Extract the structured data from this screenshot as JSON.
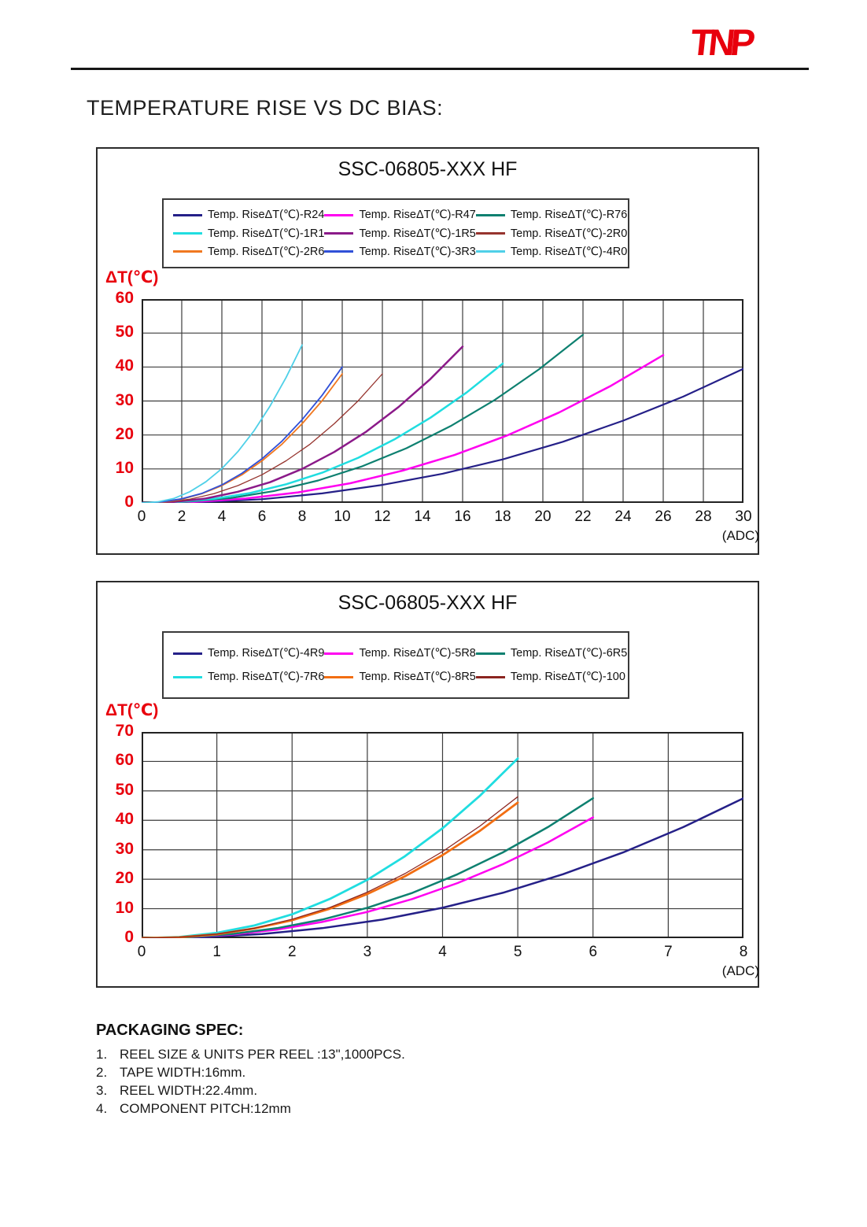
{
  "logo": {
    "text": "TNP",
    "color": "#e8000d"
  },
  "page_title": "TEMPERATURE RISE VS DC BIAS:",
  "colors": {
    "axis_label_red": "#e8000d",
    "grid": "#3c3c3c",
    "plot_border": "#222222"
  },
  "chart_data": [
    {
      "type": "line",
      "title": "SSC-06805-XXX HF",
      "ylabel": "ΔT(℃)",
      "xlabel": "(ADC)",
      "xlim": [
        0,
        30
      ],
      "ylim": [
        0,
        60
      ],
      "xticks": [
        0,
        2,
        4,
        6,
        8,
        10,
        12,
        14,
        16,
        18,
        20,
        22,
        24,
        26,
        28,
        30
      ],
      "yticks": [
        0,
        10,
        20,
        30,
        40,
        50,
        60
      ],
      "grid": true,
      "legend_position": "top",
      "series": [
        {
          "name": "Temp. RiseΔT(℃)-R24",
          "color": "#252088",
          "line_width": 2.2,
          "x": [
            0,
            3,
            6,
            9,
            12,
            15,
            18,
            21,
            24,
            27,
            30
          ],
          "y": [
            0,
            0.2,
            1.1,
            2.8,
            5.3,
            8.6,
            12.8,
            18.0,
            24.2,
            31.3,
            39.5
          ]
        },
        {
          "name": "Temp. RiseΔT(℃)-R47",
          "color": "#ff00f0",
          "line_width": 2.5,
          "x": [
            0,
            2.6,
            5.2,
            7.8,
            10.4,
            13,
            15.6,
            18.2,
            20.8,
            23.4,
            26
          ],
          "y": [
            0,
            0.3,
            1.3,
            3.1,
            5.8,
            9.5,
            14.1,
            19.8,
            26.6,
            34.5,
            43.5
          ]
        },
        {
          "name": "Temp. RiseΔT(℃)-R76",
          "color": "#0e8070",
          "line_width": 2.2,
          "x": [
            0,
            2.2,
            4.4,
            6.6,
            8.8,
            11,
            13.2,
            15.4,
            17.6,
            19.8,
            22
          ],
          "y": [
            0,
            0.3,
            1.4,
            3.5,
            6.6,
            10.8,
            16.1,
            22.6,
            30.3,
            39.3,
            49.5
          ]
        },
        {
          "name": "Temp. RiseΔT(℃)-1R1",
          "color": "#20dde0",
          "line_width": 2.5,
          "x": [
            0,
            1.8,
            3.6,
            5.4,
            7.2,
            9,
            10.8,
            12.6,
            14.4,
            16.2,
            18
          ],
          "y": [
            0,
            0.3,
            1.2,
            2.9,
            5.5,
            8.9,
            13.3,
            18.7,
            25.1,
            32.5,
            41
          ]
        },
        {
          "name": "Temp. RiseΔT(℃)-1R5",
          "color": "#8b1a89",
          "line_width": 2.5,
          "x": [
            0,
            1.6,
            3.2,
            4.8,
            6.4,
            8,
            9.6,
            11.2,
            12.8,
            14.4,
            16
          ],
          "y": [
            0,
            0.3,
            1.3,
            3.3,
            6.1,
            10.0,
            15.0,
            21.0,
            28.2,
            36.5,
            46
          ]
        },
        {
          "name": "Temp. RiseΔT(℃)-2R0",
          "color": "#96342e",
          "line_width": 1.3,
          "x": [
            0,
            1.2,
            2.4,
            3.6,
            4.8,
            6,
            7.2,
            8.4,
            9.6,
            10.8,
            12
          ],
          "y": [
            0,
            0.2,
            1.1,
            2.7,
            5.1,
            8.3,
            12.4,
            17.3,
            23.3,
            30.1,
            38
          ]
        },
        {
          "name": "Temp. RiseΔT(℃)-2R6",
          "color": "#f07820",
          "line_width": 1.8,
          "x": [
            0,
            1,
            2,
            3,
            4,
            5,
            6,
            7,
            8,
            9,
            10
          ],
          "y": [
            0,
            0.2,
            1.1,
            2.7,
            5.1,
            8.3,
            12.4,
            17.3,
            23.3,
            30.1,
            38
          ]
        },
        {
          "name": "Temp. RiseΔT(℃)-3R3",
          "color": "#3050d8",
          "line_width": 1.8,
          "x": [
            0,
            1,
            2,
            3,
            4,
            5,
            6,
            7,
            8,
            9,
            10
          ],
          "y": [
            0,
            0.3,
            1.2,
            2.8,
            5.3,
            8.7,
            13.0,
            18.2,
            24.5,
            31.7,
            40
          ]
        },
        {
          "name": "Temp. RiseΔT(℃)-4R0",
          "color": "#4fd0e8",
          "line_width": 1.8,
          "x": [
            0,
            0.8,
            1.6,
            2.4,
            3.2,
            4,
            4.8,
            5.6,
            6.4,
            7.2,
            8
          ],
          "y": [
            0,
            0.3,
            1.3,
            3.3,
            6.2,
            10.1,
            15.1,
            21.2,
            28.5,
            36.9,
            46.5
          ]
        }
      ]
    },
    {
      "type": "line",
      "title": "SSC-06805-XXX HF",
      "ylabel": "ΔT(℃)",
      "xlabel": "(ADC)",
      "xlim": [
        0,
        8
      ],
      "ylim": [
        0,
        70
      ],
      "xticks": [
        0,
        1,
        2,
        3,
        4,
        5,
        6,
        7,
        8
      ],
      "yticks": [
        0,
        10,
        20,
        30,
        40,
        50,
        60,
        70
      ],
      "grid": true,
      "legend_position": "top",
      "series": [
        {
          "name": "Temp. RiseΔT(℃)-4R9",
          "color": "#252088",
          "line_width": 2.5,
          "x": [
            0,
            0.8,
            1.6,
            2.4,
            3.2,
            4,
            4.8,
            5.6,
            6.4,
            7.2,
            8
          ],
          "y": [
            0,
            0.3,
            1.4,
            3.4,
            6.3,
            10.3,
            15.4,
            21.7,
            29.1,
            37.7,
            47.5
          ]
        },
        {
          "name": "Temp. RiseΔT(℃)-5R8",
          "color": "#ff00f0",
          "line_width": 2.5,
          "x": [
            0,
            0.6,
            1.2,
            1.8,
            2.4,
            3,
            3.6,
            4.2,
            4.8,
            5.4,
            6
          ],
          "y": [
            0,
            0.3,
            1.2,
            2.9,
            5.5,
            8.9,
            13.3,
            18.7,
            25.1,
            32.5,
            41
          ]
        },
        {
          "name": "Temp. RiseΔT(℃)-6R5",
          "color": "#0e8070",
          "line_width": 2.5,
          "x": [
            0,
            0.6,
            1.2,
            1.8,
            2.4,
            3,
            3.6,
            4.2,
            4.8,
            5.4,
            6
          ],
          "y": [
            0,
            0.3,
            1.4,
            3.4,
            6.3,
            10.3,
            15.4,
            21.7,
            29.1,
            37.7,
            47.5
          ]
        },
        {
          "name": "Temp. RiseΔT(℃)-7R6",
          "color": "#20dde0",
          "line_width": 2.8,
          "x": [
            0,
            0.5,
            1,
            1.5,
            2,
            2.5,
            3,
            3.5,
            4,
            4.5,
            5
          ],
          "y": [
            0,
            0.4,
            1.8,
            4.3,
            8.1,
            13.3,
            19.8,
            27.8,
            37.3,
            48.4,
            61
          ]
        },
        {
          "name": "Temp. RiseΔT(℃)-8R5",
          "color": "#f26e12",
          "line_width": 2.8,
          "x": [
            0,
            0.5,
            1,
            1.5,
            2,
            2.5,
            3,
            3.5,
            4,
            4.5,
            5
          ],
          "y": [
            0,
            0.3,
            1.3,
            3.3,
            6.1,
            10.0,
            15.0,
            21.0,
            28.2,
            36.5,
            46
          ]
        },
        {
          "name": "Temp. RiseΔT(℃)-100",
          "color": "#8b2520",
          "line_width": 1.3,
          "x": [
            0,
            0.5,
            1,
            1.5,
            2,
            2.5,
            3,
            3.5,
            4,
            4.5,
            5
          ],
          "y": [
            0,
            0.3,
            1.4,
            3.4,
            6.4,
            10.4,
            15.6,
            21.9,
            29.4,
            38.1,
            48
          ]
        }
      ]
    }
  ],
  "packaging": {
    "heading": "PACKAGING SPEC:",
    "items": [
      {
        "num": "1.",
        "text": "REEL SIZE & UNITS PER REEL :13\",1000PCS."
      },
      {
        "num": "2.",
        "text": "TAPE WIDTH:16mm."
      },
      {
        "num": "3.",
        "text": "REEL WIDTH:22.4mm."
      },
      {
        "num": "4.",
        "text": "COMPONENT PITCH:12mm"
      }
    ]
  }
}
